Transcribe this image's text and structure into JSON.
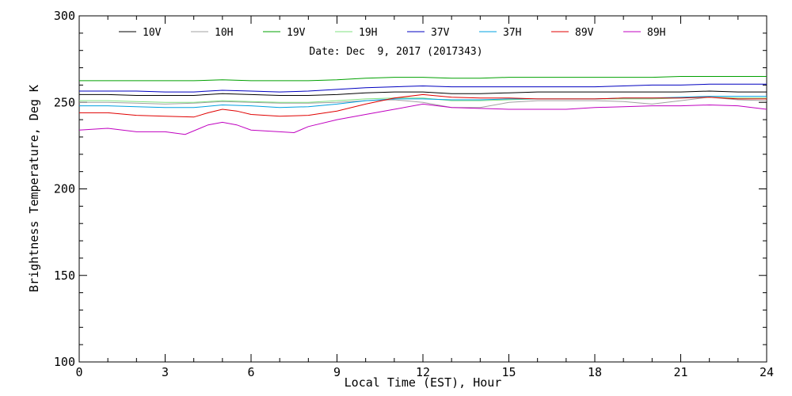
{
  "chart_data": {
    "type": "line",
    "date_label": "Date: Dec  9, 2017 (2017343)",
    "xlabel": "Local Time (EST), Hour",
    "ylabel": "Brightness Temperature, Deg K",
    "xlim": [
      0,
      24
    ],
    "ylim": [
      100,
      300
    ],
    "x_ticks": [
      0,
      3,
      6,
      9,
      12,
      15,
      18,
      21,
      24
    ],
    "y_ticks": [
      100,
      150,
      200,
      250,
      300
    ],
    "x_minor_step": 1,
    "y_minor_step": 10,
    "grid": false,
    "legend_position": "top",
    "series": [
      {
        "name": "10V",
        "color": "#000000",
        "points": [
          [
            0,
            254.5
          ],
          [
            1,
            254.5
          ],
          [
            2,
            254
          ],
          [
            3,
            254
          ],
          [
            4,
            254
          ],
          [
            5,
            255
          ],
          [
            6,
            254.5
          ],
          [
            7,
            254
          ],
          [
            8,
            254
          ],
          [
            9,
            254.5
          ],
          [
            10,
            255.5
          ],
          [
            11,
            256
          ],
          [
            12,
            256
          ],
          [
            13,
            255
          ],
          [
            14,
            255
          ],
          [
            15,
            255.5
          ],
          [
            16,
            256
          ],
          [
            17,
            256
          ],
          [
            18,
            256
          ],
          [
            19,
            256
          ],
          [
            20,
            256
          ],
          [
            21,
            256
          ],
          [
            22,
            256.5
          ],
          [
            23,
            256
          ],
          [
            24,
            256
          ]
        ]
      },
      {
        "name": "10H",
        "color": "#a0a0a0",
        "points": [
          [
            0,
            250
          ],
          [
            1,
            250
          ],
          [
            2,
            249.5
          ],
          [
            3,
            249
          ],
          [
            4,
            249.5
          ],
          [
            5,
            250.5
          ],
          [
            6,
            250
          ],
          [
            7,
            249.5
          ],
          [
            8,
            249.5
          ],
          [
            9,
            250
          ],
          [
            10,
            251
          ],
          [
            11,
            251.5
          ],
          [
            12,
            250
          ],
          [
            13,
            247
          ],
          [
            14,
            247
          ],
          [
            15,
            250
          ],
          [
            16,
            251
          ],
          [
            17,
            251
          ],
          [
            18,
            251
          ],
          [
            19,
            250.5
          ],
          [
            20,
            249
          ],
          [
            21,
            251
          ],
          [
            22,
            253
          ],
          [
            23,
            251.5
          ],
          [
            24,
            251
          ]
        ]
      },
      {
        "name": "19V",
        "color": "#00a000",
        "points": [
          [
            0,
            262.5
          ],
          [
            1,
            262.5
          ],
          [
            2,
            262.5
          ],
          [
            3,
            262.5
          ],
          [
            4,
            262.5
          ],
          [
            5,
            263
          ],
          [
            6,
            262.5
          ],
          [
            7,
            262.5
          ],
          [
            8,
            262.5
          ],
          [
            9,
            263
          ],
          [
            10,
            264
          ],
          [
            11,
            264.5
          ],
          [
            12,
            264.5
          ],
          [
            13,
            264
          ],
          [
            14,
            264
          ],
          [
            15,
            264.5
          ],
          [
            16,
            264.5
          ],
          [
            17,
            264.5
          ],
          [
            18,
            264.5
          ],
          [
            19,
            264.5
          ],
          [
            20,
            264.5
          ],
          [
            21,
            265
          ],
          [
            22,
            265
          ],
          [
            23,
            265
          ],
          [
            24,
            265
          ]
        ]
      },
      {
        "name": "19H",
        "color": "#80e080",
        "points": [
          [
            0,
            251
          ],
          [
            1,
            251
          ],
          [
            2,
            250.5
          ],
          [
            3,
            250
          ],
          [
            4,
            250
          ],
          [
            5,
            251
          ],
          [
            6,
            250.5
          ],
          [
            7,
            250
          ],
          [
            8,
            250
          ],
          [
            9,
            251
          ],
          [
            10,
            252
          ],
          [
            11,
            252.5
          ],
          [
            12,
            252.5
          ],
          [
            13,
            251
          ],
          [
            14,
            251
          ],
          [
            15,
            251.5
          ],
          [
            16,
            252
          ],
          [
            17,
            252
          ],
          [
            18,
            252
          ],
          [
            19,
            252
          ],
          [
            20,
            252
          ],
          [
            21,
            252.5
          ],
          [
            22,
            253
          ],
          [
            23,
            252.5
          ],
          [
            24,
            252.5
          ]
        ]
      },
      {
        "name": "37V",
        "color": "#0000c0",
        "points": [
          [
            0,
            256.5
          ],
          [
            1,
            256.5
          ],
          [
            2,
            256.5
          ],
          [
            3,
            256
          ],
          [
            4,
            256
          ],
          [
            5,
            257
          ],
          [
            6,
            256.5
          ],
          [
            7,
            256
          ],
          [
            8,
            256.5
          ],
          [
            9,
            257.5
          ],
          [
            10,
            258.5
          ],
          [
            11,
            259
          ],
          [
            12,
            259.5
          ],
          [
            13,
            259
          ],
          [
            14,
            259
          ],
          [
            15,
            259
          ],
          [
            16,
            259
          ],
          [
            17,
            259
          ],
          [
            18,
            259
          ],
          [
            19,
            259.5
          ],
          [
            20,
            260
          ],
          [
            21,
            260
          ],
          [
            22,
            260.5
          ],
          [
            23,
            260.5
          ],
          [
            24,
            260.5
          ]
        ]
      },
      {
        "name": "37H",
        "color": "#00a0e0",
        "points": [
          [
            0,
            248
          ],
          [
            1,
            248
          ],
          [
            2,
            247.5
          ],
          [
            3,
            247
          ],
          [
            4,
            247
          ],
          [
            5,
            248.5
          ],
          [
            6,
            248
          ],
          [
            7,
            247
          ],
          [
            8,
            247.5
          ],
          [
            9,
            249
          ],
          [
            10,
            251
          ],
          [
            11,
            252
          ],
          [
            12,
            252
          ],
          [
            13,
            251.5
          ],
          [
            14,
            251.5
          ],
          [
            15,
            252
          ],
          [
            16,
            252
          ],
          [
            17,
            252
          ],
          [
            18,
            252
          ],
          [
            19,
            252.5
          ],
          [
            20,
            252.5
          ],
          [
            21,
            253
          ],
          [
            22,
            253.5
          ],
          [
            23,
            253.5
          ],
          [
            24,
            253.5
          ]
        ]
      },
      {
        "name": "89V",
        "color": "#e00000",
        "points": [
          [
            0,
            244
          ],
          [
            1,
            244
          ],
          [
            2,
            242.5
          ],
          [
            3,
            242
          ],
          [
            4,
            241.5
          ],
          [
            4.5,
            244
          ],
          [
            5,
            246
          ],
          [
            5.5,
            245
          ],
          [
            6,
            243
          ],
          [
            7,
            242
          ],
          [
            8,
            242.5
          ],
          [
            9,
            245
          ],
          [
            10,
            249
          ],
          [
            11,
            252.5
          ],
          [
            12,
            254.5
          ],
          [
            13,
            253
          ],
          [
            14,
            252.5
          ],
          [
            15,
            252.5
          ],
          [
            16,
            252
          ],
          [
            17,
            252
          ],
          [
            18,
            252
          ],
          [
            19,
            252.5
          ],
          [
            20,
            252.5
          ],
          [
            21,
            252.5
          ],
          [
            22,
            253
          ],
          [
            23,
            252
          ],
          [
            24,
            252
          ]
        ]
      },
      {
        "name": "89H",
        "color": "#c000c0",
        "points": [
          [
            0,
            234
          ],
          [
            1,
            235
          ],
          [
            2,
            233
          ],
          [
            3,
            233
          ],
          [
            3.7,
            231.5
          ],
          [
            4.5,
            237
          ],
          [
            5,
            238.5
          ],
          [
            5.5,
            237
          ],
          [
            6,
            234
          ],
          [
            7,
            233
          ],
          [
            7.5,
            232.5
          ],
          [
            8,
            236
          ],
          [
            9,
            240
          ],
          [
            10,
            243
          ],
          [
            11,
            246
          ],
          [
            12,
            249
          ],
          [
            13,
            247
          ],
          [
            14,
            246.5
          ],
          [
            15,
            246
          ],
          [
            16,
            246
          ],
          [
            17,
            246
          ],
          [
            18,
            247
          ],
          [
            19,
            247.5
          ],
          [
            20,
            248
          ],
          [
            21,
            248
          ],
          [
            22,
            248.5
          ],
          [
            23,
            248
          ],
          [
            24,
            246
          ]
        ]
      }
    ]
  }
}
